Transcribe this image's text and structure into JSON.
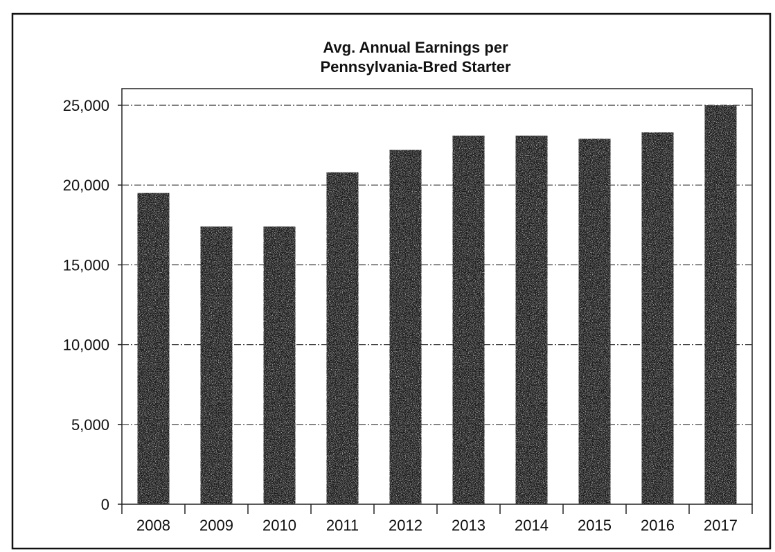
{
  "chart_data": {
    "type": "bar",
    "title_lines": [
      "Avg. Annual Earnings per",
      "Pennsylvania-Bred Starter"
    ],
    "categories": [
      "2008",
      "2009",
      "2010",
      "2011",
      "2012",
      "2013",
      "2014",
      "2015",
      "2016",
      "2017"
    ],
    "values": [
      19500,
      17400,
      17400,
      20800,
      22200,
      23100,
      23100,
      22900,
      23300,
      25000
    ],
    "yticks": [
      "0",
      "5,000",
      "10,000",
      "15,000",
      "20,000",
      "25,000"
    ],
    "ylim": [
      0,
      25000
    ],
    "grid": true,
    "legend": "none",
    "bar_color": "#1e1e1e"
  }
}
